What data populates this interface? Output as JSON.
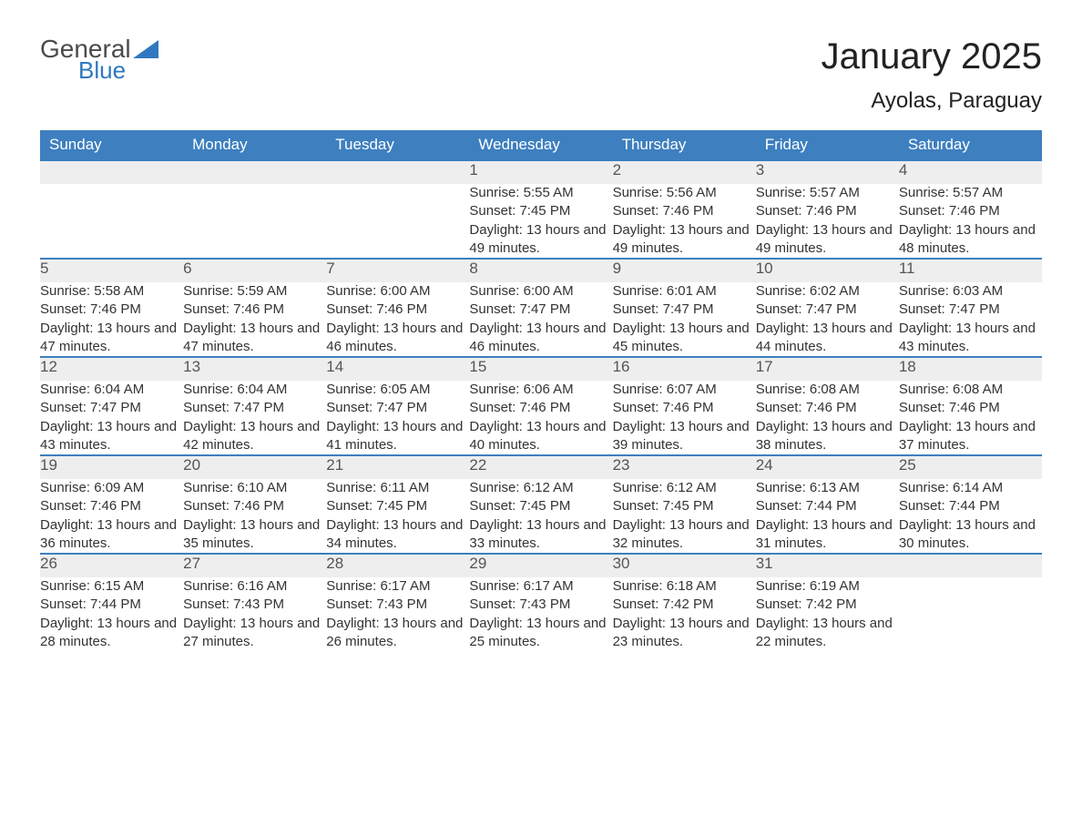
{
  "logo": {
    "word1": "General",
    "word2": "Blue",
    "accent_color": "#2f78bf"
  },
  "title": "January 2025",
  "location": "Ayolas, Paraguay",
  "colors": {
    "header_bg": "#3d7fbf",
    "header_text": "#ffffff",
    "daynum_bg": "#eeeeee",
    "daynum_border": "#3d7fbf",
    "body_text": "#333333",
    "background": "#ffffff"
  },
  "weekday_headers": [
    "Sunday",
    "Monday",
    "Tuesday",
    "Wednesday",
    "Thursday",
    "Friday",
    "Saturday"
  ],
  "labels": {
    "sunrise_prefix": "Sunrise: ",
    "sunset_prefix": "Sunset: ",
    "daylight_prefix": "Daylight: "
  },
  "weeks": [
    [
      null,
      null,
      null,
      {
        "day": "1",
        "sunrise": "5:55 AM",
        "sunset": "7:45 PM",
        "daylight": "13 hours and 49 minutes."
      },
      {
        "day": "2",
        "sunrise": "5:56 AM",
        "sunset": "7:46 PM",
        "daylight": "13 hours and 49 minutes."
      },
      {
        "day": "3",
        "sunrise": "5:57 AM",
        "sunset": "7:46 PM",
        "daylight": "13 hours and 49 minutes."
      },
      {
        "day": "4",
        "sunrise": "5:57 AM",
        "sunset": "7:46 PM",
        "daylight": "13 hours and 48 minutes."
      }
    ],
    [
      {
        "day": "5",
        "sunrise": "5:58 AM",
        "sunset": "7:46 PM",
        "daylight": "13 hours and 47 minutes."
      },
      {
        "day": "6",
        "sunrise": "5:59 AM",
        "sunset": "7:46 PM",
        "daylight": "13 hours and 47 minutes."
      },
      {
        "day": "7",
        "sunrise": "6:00 AM",
        "sunset": "7:46 PM",
        "daylight": "13 hours and 46 minutes."
      },
      {
        "day": "8",
        "sunrise": "6:00 AM",
        "sunset": "7:47 PM",
        "daylight": "13 hours and 46 minutes."
      },
      {
        "day": "9",
        "sunrise": "6:01 AM",
        "sunset": "7:47 PM",
        "daylight": "13 hours and 45 minutes."
      },
      {
        "day": "10",
        "sunrise": "6:02 AM",
        "sunset": "7:47 PM",
        "daylight": "13 hours and 44 minutes."
      },
      {
        "day": "11",
        "sunrise": "6:03 AM",
        "sunset": "7:47 PM",
        "daylight": "13 hours and 43 minutes."
      }
    ],
    [
      {
        "day": "12",
        "sunrise": "6:04 AM",
        "sunset": "7:47 PM",
        "daylight": "13 hours and 43 minutes."
      },
      {
        "day": "13",
        "sunrise": "6:04 AM",
        "sunset": "7:47 PM",
        "daylight": "13 hours and 42 minutes."
      },
      {
        "day": "14",
        "sunrise": "6:05 AM",
        "sunset": "7:47 PM",
        "daylight": "13 hours and 41 minutes."
      },
      {
        "day": "15",
        "sunrise": "6:06 AM",
        "sunset": "7:46 PM",
        "daylight": "13 hours and 40 minutes."
      },
      {
        "day": "16",
        "sunrise": "6:07 AM",
        "sunset": "7:46 PM",
        "daylight": "13 hours and 39 minutes."
      },
      {
        "day": "17",
        "sunrise": "6:08 AM",
        "sunset": "7:46 PM",
        "daylight": "13 hours and 38 minutes."
      },
      {
        "day": "18",
        "sunrise": "6:08 AM",
        "sunset": "7:46 PM",
        "daylight": "13 hours and 37 minutes."
      }
    ],
    [
      {
        "day": "19",
        "sunrise": "6:09 AM",
        "sunset": "7:46 PM",
        "daylight": "13 hours and 36 minutes."
      },
      {
        "day": "20",
        "sunrise": "6:10 AM",
        "sunset": "7:46 PM",
        "daylight": "13 hours and 35 minutes."
      },
      {
        "day": "21",
        "sunrise": "6:11 AM",
        "sunset": "7:45 PM",
        "daylight": "13 hours and 34 minutes."
      },
      {
        "day": "22",
        "sunrise": "6:12 AM",
        "sunset": "7:45 PM",
        "daylight": "13 hours and 33 minutes."
      },
      {
        "day": "23",
        "sunrise": "6:12 AM",
        "sunset": "7:45 PM",
        "daylight": "13 hours and 32 minutes."
      },
      {
        "day": "24",
        "sunrise": "6:13 AM",
        "sunset": "7:44 PM",
        "daylight": "13 hours and 31 minutes."
      },
      {
        "day": "25",
        "sunrise": "6:14 AM",
        "sunset": "7:44 PM",
        "daylight": "13 hours and 30 minutes."
      }
    ],
    [
      {
        "day": "26",
        "sunrise": "6:15 AM",
        "sunset": "7:44 PM",
        "daylight": "13 hours and 28 minutes."
      },
      {
        "day": "27",
        "sunrise": "6:16 AM",
        "sunset": "7:43 PM",
        "daylight": "13 hours and 27 minutes."
      },
      {
        "day": "28",
        "sunrise": "6:17 AM",
        "sunset": "7:43 PM",
        "daylight": "13 hours and 26 minutes."
      },
      {
        "day": "29",
        "sunrise": "6:17 AM",
        "sunset": "7:43 PM",
        "daylight": "13 hours and 25 minutes."
      },
      {
        "day": "30",
        "sunrise": "6:18 AM",
        "sunset": "7:42 PM",
        "daylight": "13 hours and 23 minutes."
      },
      {
        "day": "31",
        "sunrise": "6:19 AM",
        "sunset": "7:42 PM",
        "daylight": "13 hours and 22 minutes."
      },
      null
    ]
  ]
}
